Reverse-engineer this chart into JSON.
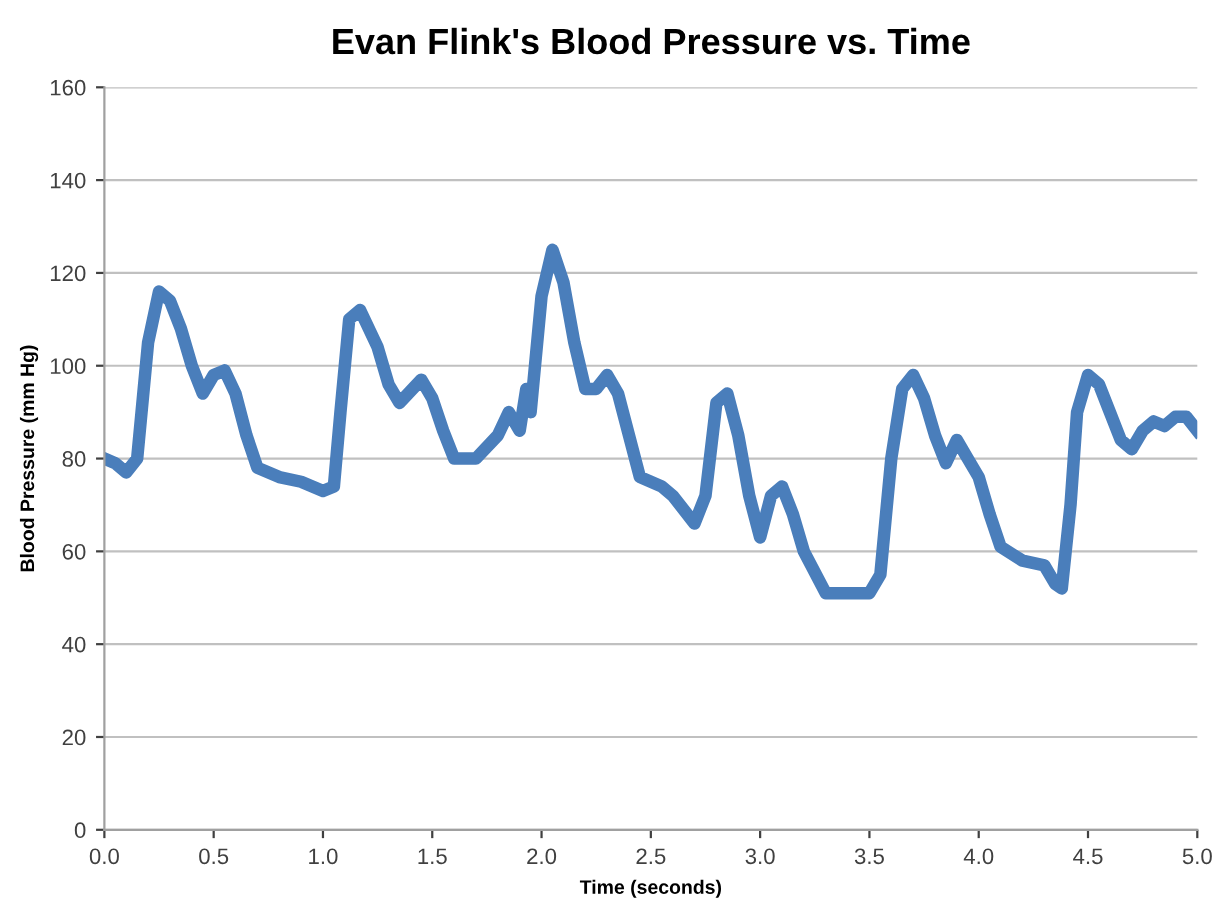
{
  "chart_data": {
    "type": "line",
    "title": "Evan Flink's Blood Pressure vs. Time",
    "xlabel": "Time (seconds)",
    "ylabel": "Blood Pressure (mm Hg)",
    "series": [
      {
        "color": "#4a7ebb",
        "x": [
          0,
          0.05,
          0.1,
          0.15,
          0.2,
          0.25,
          0.3,
          0.35,
          0.4,
          0.45,
          0.5,
          0.55,
          0.6,
          0.65,
          0.7,
          0.8,
          0.9,
          1.0,
          1.05,
          1.08,
          1.12,
          1.17,
          1.25,
          1.3,
          1.35,
          1.45,
          1.5,
          1.55,
          1.6,
          1.7,
          1.8,
          1.85,
          1.9,
          1.93,
          1.95,
          2.0,
          2.05,
          2.1,
          2.15,
          2.2,
          2.25,
          2.3,
          2.35,
          2.4,
          2.45,
          2.55,
          2.6,
          2.7,
          2.75,
          2.8,
          2.85,
          2.9,
          2.95,
          3.0,
          3.05,
          3.1,
          3.15,
          3.2,
          3.3,
          3.4,
          3.5,
          3.55,
          3.6,
          3.65,
          3.7,
          3.75,
          3.8,
          3.85,
          3.9,
          3.95,
          4.0,
          4.05,
          4.1,
          4.2,
          4.3,
          4.35,
          4.38,
          4.42,
          4.45,
          4.5,
          4.55,
          4.6,
          4.65,
          4.7,
          4.75,
          4.8,
          4.85,
          4.9,
          4.95,
          5.0
        ],
        "values": [
          80,
          79,
          77,
          80,
          105,
          116,
          114,
          108,
          100,
          94,
          98,
          99,
          94,
          85,
          78,
          76,
          75,
          73,
          74,
          90,
          110,
          112,
          104,
          96,
          92,
          97,
          93,
          86,
          80,
          80,
          85,
          90,
          86,
          95,
          90,
          115,
          125,
          118,
          105,
          95,
          95,
          98,
          94,
          85,
          76,
          74,
          72,
          66,
          72,
          92,
          94,
          85,
          72,
          63,
          72,
          74,
          68,
          60,
          51,
          51,
          51,
          55,
          80,
          95,
          98,
          93,
          85,
          79,
          84,
          80,
          76,
          68,
          61,
          58,
          57,
          53,
          52,
          70,
          90,
          98,
          96,
          90,
          84,
          82,
          86,
          88,
          87,
          89,
          89,
          86
        ]
      }
    ],
    "xlim": [
      0,
      5
    ],
    "xticks": [
      {
        "value": 0,
        "label": "0.0"
      },
      {
        "value": 0.5,
        "label": "0.5"
      },
      {
        "value": 1,
        "label": "1.0"
      },
      {
        "value": 1.5,
        "label": "1.5"
      },
      {
        "value": 2,
        "label": "2.0"
      },
      {
        "value": 2.5,
        "label": "2.5"
      },
      {
        "value": 3,
        "label": "3.0"
      },
      {
        "value": 3.5,
        "label": "3.5"
      },
      {
        "value": 4,
        "label": "4.0"
      },
      {
        "value": 4.5,
        "label": "4.5"
      },
      {
        "value": 5,
        "label": "5.0"
      }
    ],
    "ylim": [
      0,
      160
    ],
    "yticks": [
      0,
      20,
      40,
      60,
      80,
      100,
      120,
      140,
      160
    ],
    "grid": "y",
    "marker": "none",
    "line_style": "solid"
  }
}
